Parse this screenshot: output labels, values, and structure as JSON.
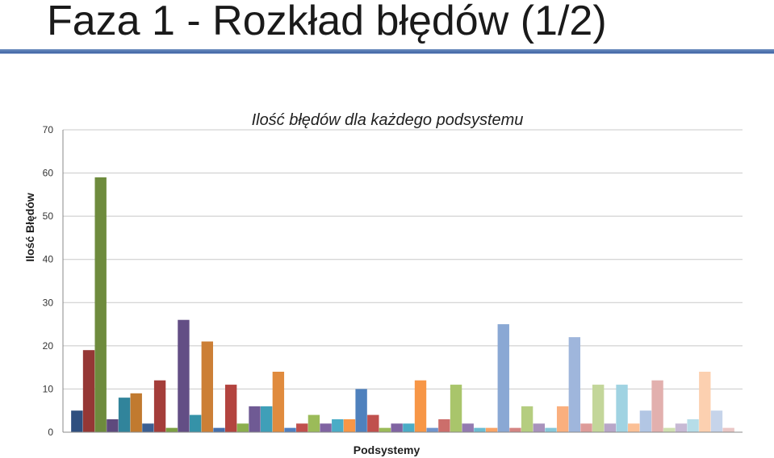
{
  "slide": {
    "title": "Faza 1 - Rozkład błędów (1/2)"
  },
  "chart_data": {
    "type": "bar",
    "title": "Ilość błędów dla każdego podsystemu",
    "xlabel": "Podsystemy",
    "ylabel": "Ilość Błędów",
    "ylim": [
      0,
      70
    ],
    "yticks": [
      0,
      10,
      20,
      30,
      40,
      50,
      60,
      70
    ],
    "grid": true,
    "values": [
      5,
      19,
      59,
      3,
      8,
      9,
      2,
      12,
      1,
      26,
      4,
      21,
      1,
      11,
      2,
      6,
      6,
      14,
      1,
      2,
      4,
      2,
      3,
      3,
      10,
      4,
      1,
      2,
      2,
      12,
      1,
      3,
      11,
      2,
      1,
      1,
      25,
      1,
      6,
      2,
      1,
      6,
      22,
      2,
      11,
      2,
      11,
      2,
      5,
      12,
      1,
      2,
      3,
      14,
      5,
      1
    ],
    "colors": [
      "#2f4f7f",
      "#953735",
      "#6e8b3d",
      "#5e4a7d",
      "#31849b",
      "#c17a2f",
      "#3b5f92",
      "#a43d3a",
      "#7da043",
      "#634e85",
      "#3592a8",
      "#cc7f36",
      "#4470ad",
      "#b3443f",
      "#8bae4e",
      "#6f5a94",
      "#3f9fb8",
      "#e08b3e",
      "#4f7fc0",
      "#c0504d",
      "#9bbb59",
      "#8064a2",
      "#4bacc6",
      "#f79646",
      "#4f81bd",
      "#c0504d",
      "#9bbb59",
      "#8064a2",
      "#4bacc6",
      "#f79646",
      "#7095cc",
      "#cc6e6b",
      "#a9c56b",
      "#937ab0",
      "#6bbcd2",
      "#f9a466",
      "#8aa8d4",
      "#d48583",
      "#b5cd80",
      "#a892bc",
      "#86c8da",
      "#faaf7e",
      "#9fb6dc",
      "#dd9b99",
      "#c3d69a",
      "#b8a6c8",
      "#a0d3e2",
      "#fbc096",
      "#b2c6e4",
      "#e2b0ae",
      "#cfdfb0",
      "#c7b9d4",
      "#b6dde8",
      "#fcd0b0",
      "#c6d4ea",
      "#eac7c6"
    ]
  }
}
